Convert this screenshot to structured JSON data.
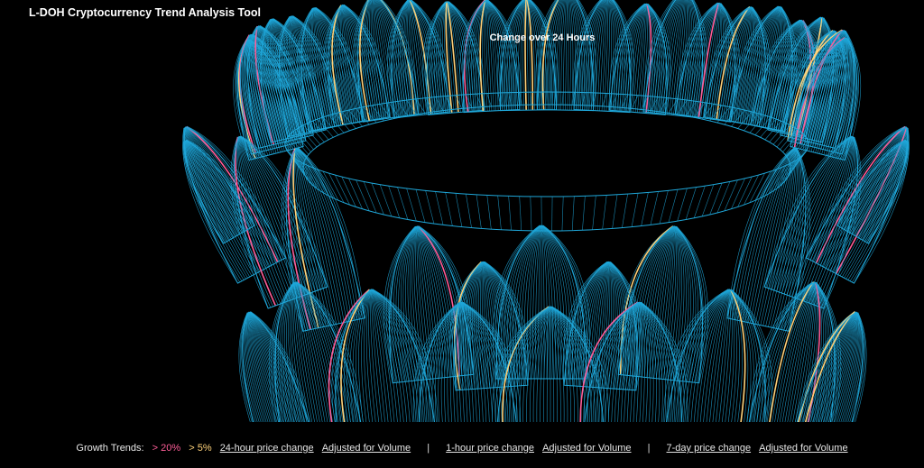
{
  "app": {
    "title": "L-DOH Cryptocurrency Trend Analysis Tool"
  },
  "view": {
    "title": "Change over 24 Hours"
  },
  "colors": {
    "background": "#000000",
    "petal_outline": "#1fa7d9",
    "trend_over_20": "#ff5e99",
    "trend_over_5": "#ffd27a"
  },
  "footer": {
    "legend_label": "Growth Trends:",
    "legend_pink": "> 20%",
    "legend_yellow": "> 5%",
    "separator": "|",
    "options": [
      {
        "label": "24-hour price change"
      },
      {
        "label": "Adjusted for Volume"
      },
      {
        "label": "1-hour price change"
      },
      {
        "label": "Adjusted for Volume"
      },
      {
        "label": "7-day price change"
      },
      {
        "label": "Adjusted for Volume"
      }
    ]
  }
}
